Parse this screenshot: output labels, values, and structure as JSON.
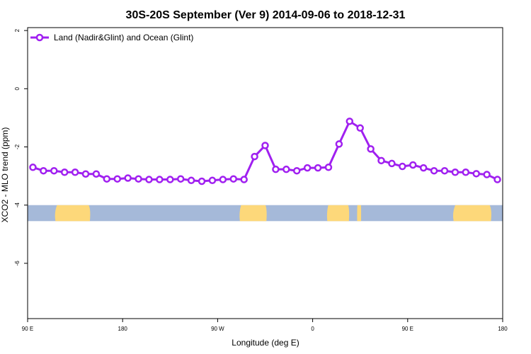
{
  "chart_data": {
    "type": "line",
    "title": "30S-20S September (Ver 9)   2014-09-06 to 2018-12-31",
    "xlabel": "Longitude (deg E)",
    "ylabel": "XCO2 - MLO trend (ppm)",
    "xlim": [
      90,
      540
    ],
    "ylim": [
      -7.9,
      2.1
    ],
    "x_ticks": [
      {
        "value": 90,
        "label": "90 E"
      },
      {
        "value": 180,
        "label": "180"
      },
      {
        "value": 270,
        "label": "90 W"
      },
      {
        "value": 360,
        "label": "0"
      },
      {
        "value": 450,
        "label": "90 E"
      },
      {
        "value": 540,
        "label": "180"
      }
    ],
    "y_ticks": [
      {
        "value": 2,
        "label": "2"
      },
      {
        "value": 0,
        "label": "0"
      },
      {
        "value": -2,
        "label": "-2"
      },
      {
        "value": -4,
        "label": "-4"
      },
      {
        "value": -6,
        "label": "-6"
      }
    ],
    "grid": false,
    "legend_position": "top-left",
    "series": [
      {
        "name": "Land (Nadir&Glint) and Ocean (Glint)",
        "color": "#a020f0",
        "x": [
          95,
          105,
          115,
          125,
          135,
          145,
          155,
          165,
          175,
          185,
          195,
          205,
          215,
          225,
          235,
          245,
          255,
          265,
          275,
          285,
          295,
          305,
          315,
          325,
          335,
          345,
          355,
          365,
          375,
          385,
          395,
          405,
          415,
          425,
          435,
          445,
          455,
          465,
          475,
          485,
          495,
          505,
          515,
          525,
          535
        ],
        "y": [
          -2.7,
          -2.82,
          -2.82,
          -2.87,
          -2.87,
          -2.93,
          -2.93,
          -3.1,
          -3.1,
          -3.07,
          -3.1,
          -3.12,
          -3.12,
          -3.12,
          -3.1,
          -3.15,
          -3.18,
          -3.15,
          -3.12,
          -3.1,
          -3.12,
          -2.33,
          -1.95,
          -2.77,
          -2.77,
          -2.82,
          -2.72,
          -2.72,
          -2.7,
          -1.9,
          -1.12,
          -1.35,
          -2.07,
          -2.47,
          -2.57,
          -2.67,
          -2.62,
          -2.72,
          -2.82,
          -2.82,
          -2.87,
          -2.87,
          -2.92,
          -2.95,
          -3.12
        ]
      }
    ],
    "land_ocean_strip": {
      "y_range": [
        -4.55,
        -4.0
      ],
      "ocean_color": "#a5b9d9",
      "land_color": "#fdd87a",
      "land_segments": [
        [
          115,
          150
        ],
        [
          290,
          317
        ],
        [
          373,
          395
        ],
        [
          402,
          406
        ],
        [
          492,
          530
        ]
      ]
    }
  }
}
